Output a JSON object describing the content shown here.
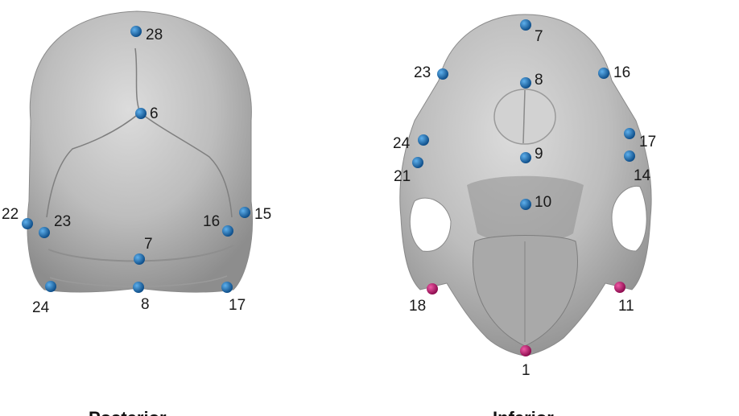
{
  "views": [
    {
      "caption": "Posterior",
      "landmarks": [
        {
          "label": "28",
          "color": "blue"
        },
        {
          "label": "6",
          "color": "blue"
        },
        {
          "label": "22",
          "color": "blue"
        },
        {
          "label": "23",
          "color": "blue"
        },
        {
          "label": "16",
          "color": "blue"
        },
        {
          "label": "15",
          "color": "blue"
        },
        {
          "label": "7",
          "color": "blue"
        },
        {
          "label": "24",
          "color": "blue"
        },
        {
          "label": "8",
          "color": "blue"
        },
        {
          "label": "17",
          "color": "blue"
        }
      ]
    },
    {
      "caption": "Inferior",
      "landmarks": [
        {
          "label": "7",
          "color": "blue"
        },
        {
          "label": "23",
          "color": "blue"
        },
        {
          "label": "8",
          "color": "blue"
        },
        {
          "label": "16",
          "color": "blue"
        },
        {
          "label": "24",
          "color": "blue"
        },
        {
          "label": "17",
          "color": "blue"
        },
        {
          "label": "9",
          "color": "blue"
        },
        {
          "label": "21",
          "color": "blue"
        },
        {
          "label": "14",
          "color": "blue"
        },
        {
          "label": "10",
          "color": "blue"
        },
        {
          "label": "18",
          "color": "magenta"
        },
        {
          "label": "11",
          "color": "magenta"
        },
        {
          "label": "1",
          "color": "magenta"
        }
      ]
    }
  ],
  "colors": {
    "blue": "#1f6fb5",
    "magenta": "#c0186e",
    "bone": "#b9b9b9"
  }
}
